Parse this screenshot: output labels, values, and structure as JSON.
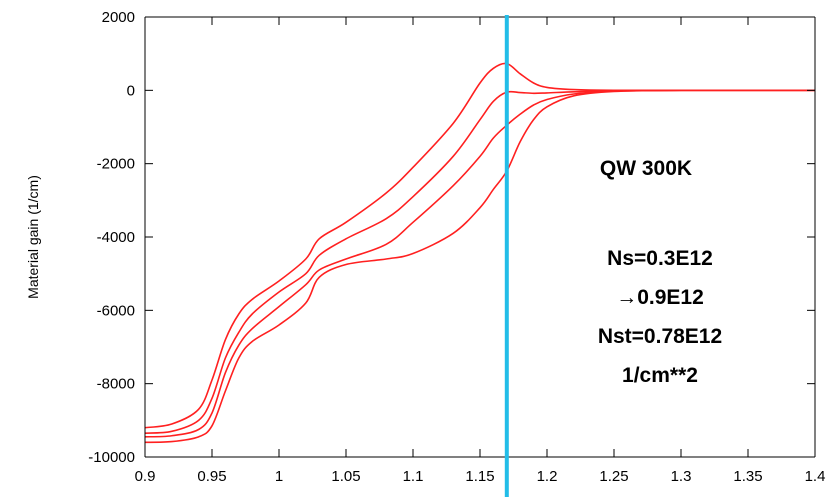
{
  "chart_data": {
    "type": "line",
    "title": "",
    "xlabel": "",
    "ylabel": "Material gain (1/cm)",
    "xlim": [
      0.9,
      1.4
    ],
    "ylim": [
      -10000,
      2000
    ],
    "x_ticks": [
      "0.9",
      "0.95",
      "1",
      "1.05",
      "1.1",
      "1.15",
      "1.2",
      "1.25",
      "1.3",
      "1.35",
      "1.4"
    ],
    "y_ticks": [
      "2000",
      "0",
      "-2000",
      "-4000",
      "-6000",
      "-8000",
      "-10000"
    ],
    "grid": false,
    "legend": "none",
    "colors": {
      "curves": "#ff2020",
      "marker": "#22bde8",
      "axis": "#000000"
    },
    "marker_line": {
      "x": 1.17
    },
    "annotations": [
      "QW 300K",
      "Ns=0.3E12",
      "→0.9E12",
      "Nst=0.78E12",
      "1/cm**2"
    ],
    "series": [
      {
        "x": [
          0.9,
          0.92,
          0.94,
          0.95,
          0.96,
          0.97,
          0.98,
          1.0,
          1.02,
          1.03,
          1.05,
          1.08,
          1.1,
          1.13,
          1.15,
          1.16,
          1.17,
          1.18,
          1.19,
          1.2,
          1.22,
          1.25,
          1.3,
          1.35,
          1.4
        ],
        "values": [
          -9200,
          -9100,
          -8700,
          -7900,
          -6800,
          -6100,
          -5700,
          -5200,
          -4600,
          -4050,
          -3600,
          -2800,
          -2100,
          -900,
          200,
          600,
          730,
          450,
          200,
          80,
          20,
          0,
          0,
          0,
          0
        ]
      },
      {
        "x": [
          0.9,
          0.92,
          0.94,
          0.95,
          0.96,
          0.97,
          0.98,
          1.0,
          1.02,
          1.03,
          1.05,
          1.08,
          1.1,
          1.13,
          1.15,
          1.16,
          1.17,
          1.18,
          1.19,
          1.2,
          1.22,
          1.25,
          1.3,
          1.35,
          1.4
        ],
        "values": [
          -9350,
          -9300,
          -9000,
          -8400,
          -7300,
          -6600,
          -6100,
          -5500,
          -5000,
          -4500,
          -4050,
          -3500,
          -2900,
          -1800,
          -800,
          -300,
          -50,
          -60,
          -80,
          -70,
          -40,
          -10,
          0,
          0,
          0
        ]
      },
      {
        "x": [
          0.9,
          0.92,
          0.94,
          0.95,
          0.96,
          0.97,
          0.98,
          1.0,
          1.02,
          1.03,
          1.05,
          1.08,
          1.1,
          1.13,
          1.15,
          1.16,
          1.17,
          1.18,
          1.19,
          1.2,
          1.22,
          1.25,
          1.3,
          1.35,
          1.4
        ],
        "values": [
          -9450,
          -9420,
          -9250,
          -8800,
          -7700,
          -6950,
          -6500,
          -5900,
          -5300,
          -4900,
          -4600,
          -4200,
          -3600,
          -2600,
          -1800,
          -1300,
          -950,
          -650,
          -400,
          -250,
          -100,
          -20,
          0,
          0,
          0
        ]
      },
      {
        "x": [
          0.9,
          0.92,
          0.94,
          0.95,
          0.96,
          0.97,
          0.98,
          1.0,
          1.02,
          1.03,
          1.05,
          1.08,
          1.1,
          1.13,
          1.15,
          1.16,
          1.17,
          1.18,
          1.19,
          1.2,
          1.22,
          1.25,
          1.3,
          1.35,
          1.4
        ],
        "values": [
          -9600,
          -9580,
          -9450,
          -9150,
          -8200,
          -7300,
          -6850,
          -6400,
          -5800,
          -5100,
          -4750,
          -4600,
          -4450,
          -3900,
          -3200,
          -2700,
          -2200,
          -1400,
          -800,
          -450,
          -150,
          -30,
          0,
          0,
          0
        ]
      }
    ]
  }
}
